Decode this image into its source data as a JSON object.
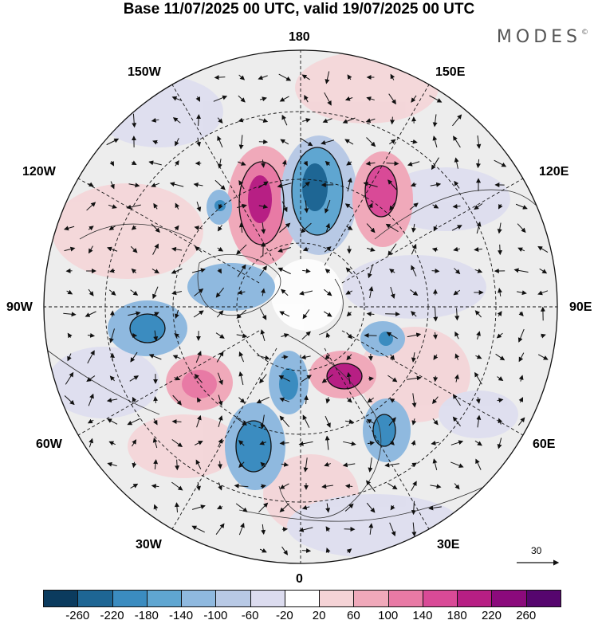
{
  "title": "Base 11/07/2025 00 UTC, valid 19/07/2025 00 UTC",
  "brand": "MODES",
  "brand_mark": "©",
  "longitude_labels": {
    "top": "180",
    "bottom": "0",
    "left": "90W",
    "right": "90E",
    "upper_left_1": "150W",
    "upper_left_2": "120W",
    "upper_right_1": "150E",
    "upper_right_2": "120E",
    "lower_left_1": "60W",
    "lower_left_2": "30W",
    "lower_right_1": "60E",
    "lower_right_2": "30E"
  },
  "reference_vector": {
    "value": "30"
  },
  "colorbar": {
    "colors": [
      "#0b3b5e",
      "#1e6694",
      "#3b8cc0",
      "#5fa6d1",
      "#8fb9df",
      "#b8c9e5",
      "#dcdcef",
      "#ffffff",
      "#f5d3d6",
      "#f0a9ba",
      "#e87aa5",
      "#d94a97",
      "#b71f84",
      "#8b0a7c",
      "#56056e"
    ],
    "ticks": [
      "-260",
      "-220",
      "-180",
      "-140",
      "-100",
      "-60",
      "-20",
      "20",
      "60",
      "100",
      "140",
      "180",
      "220",
      "260"
    ]
  },
  "anomaly_features": [
    {
      "name": "pos-center-150e",
      "value": 180,
      "color": "#d94a97"
    },
    {
      "name": "neg-center-180",
      "value": -180,
      "color": "#3b8cc0"
    },
    {
      "name": "pos-center-150e-2",
      "value": 140,
      "color": "#e87aa5"
    },
    {
      "name": "neg-center-60w",
      "value": -140,
      "color": "#5fa6d1"
    },
    {
      "name": "pos-center-30e",
      "value": 180,
      "color": "#d94a97"
    },
    {
      "name": "neg-center-30w",
      "value": -140,
      "color": "#5fa6d1"
    }
  ]
}
